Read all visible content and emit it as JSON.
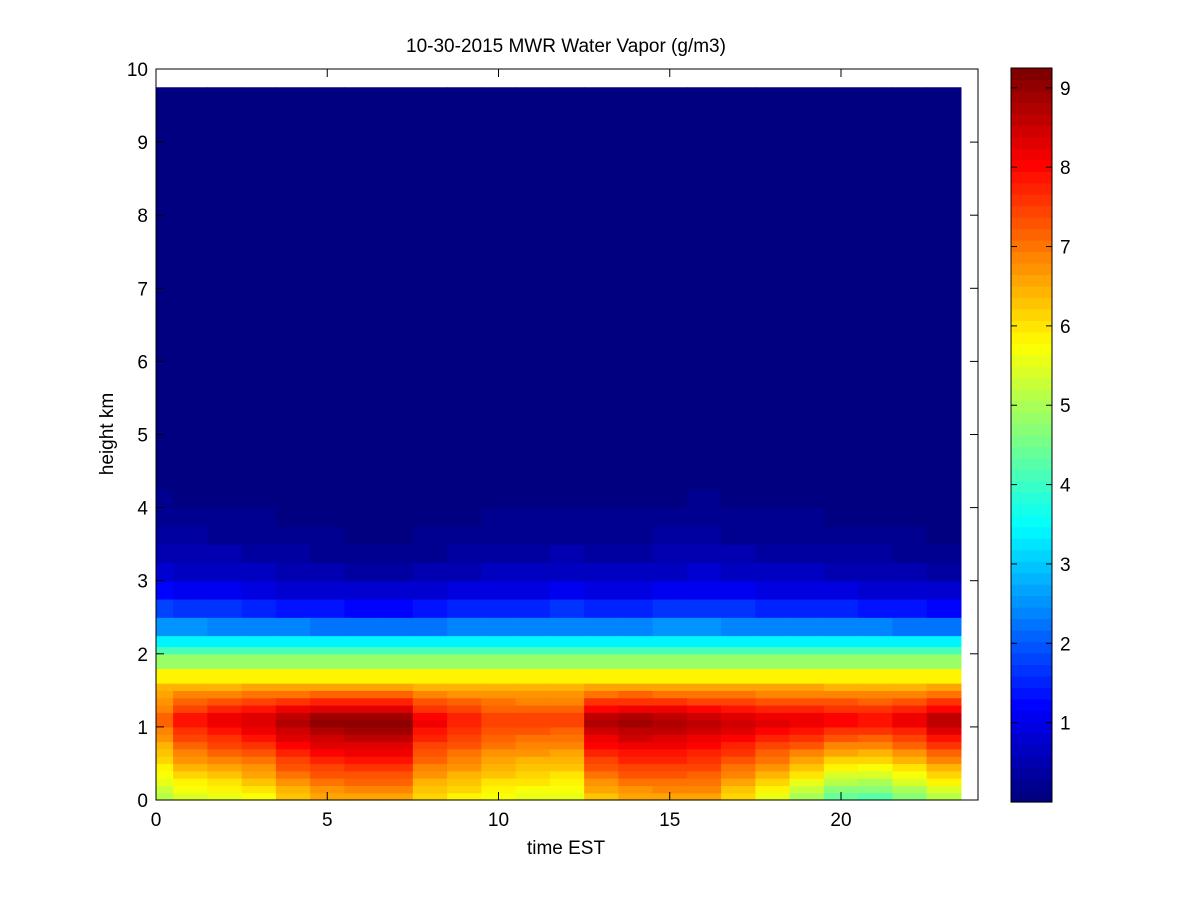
{
  "chart_data": {
    "type": "heatmap",
    "title": "10-30-2015 MWR Water Vapor (g/m3)",
    "xlabel": "time EST",
    "ylabel": "height km",
    "xlim": [
      0,
      24
    ],
    "ylim": [
      0,
      10
    ],
    "x_ticks": [
      "0",
      "5",
      "10",
      "15",
      "20"
    ],
    "y_ticks": [
      "0",
      "1",
      "2",
      "3",
      "4",
      "5",
      "6",
      "7",
      "8",
      "9",
      "10"
    ],
    "colormap": "jet",
    "color_range": [
      0,
      9.25
    ],
    "colorbar_ticks": [
      "1",
      "2",
      "3",
      "4",
      "5",
      "6",
      "7",
      "8",
      "9"
    ],
    "time_step_hours": 1,
    "time_start_hours": 0,
    "time_end_hours": 23.5,
    "height_top_km": 9.75,
    "height_levels_km": [
      0,
      0.1,
      0.2,
      0.3,
      0.4,
      0.5,
      0.6,
      0.7,
      0.8,
      0.9,
      1.0,
      1.1,
      1.2,
      1.3,
      1.4,
      1.5,
      1.6,
      1.8,
      2.0,
      2.1,
      2.25,
      2.5,
      2.75,
      3.0,
      3.25,
      3.5,
      3.75,
      4.0,
      4.25,
      4.5,
      4.75,
      5.0,
      9.75
    ],
    "profile_hours": [
      0,
      1,
      2,
      3,
      4,
      5,
      6,
      7,
      8,
      9,
      10,
      11,
      12,
      13,
      14,
      15,
      16,
      17,
      18,
      19,
      20,
      21,
      22,
      23
    ],
    "surface_values": [
      5.0,
      5.3,
      5.4,
      5.6,
      6.1,
      6.4,
      6.5,
      6.5,
      6.0,
      5.8,
      5.6,
      5.5,
      5.4,
      6.2,
      6.4,
      6.5,
      6.5,
      6.0,
      5.5,
      4.8,
      4.2,
      4.1,
      4.5,
      4.9
    ],
    "peak_values": [
      7.2,
      8.0,
      8.3,
      8.5,
      8.9,
      9.1,
      9.2,
      9.2,
      8.2,
      7.9,
      7.6,
      7.5,
      7.5,
      8.8,
      9.0,
      8.9,
      8.7,
      8.6,
      8.4,
      8.4,
      8.2,
      8.1,
      8.3,
      8.8
    ],
    "moist_top_km": [
      3.8,
      3.5,
      3.4,
      3.2,
      3.0,
      2.9,
      2.8,
      2.8,
      2.9,
      3.1,
      3.2,
      3.3,
      3.4,
      3.3,
      3.2,
      3.5,
      3.6,
      3.4,
      3.2,
      3.2,
      3.1,
      3.0,
      2.9,
      2.8
    ]
  }
}
